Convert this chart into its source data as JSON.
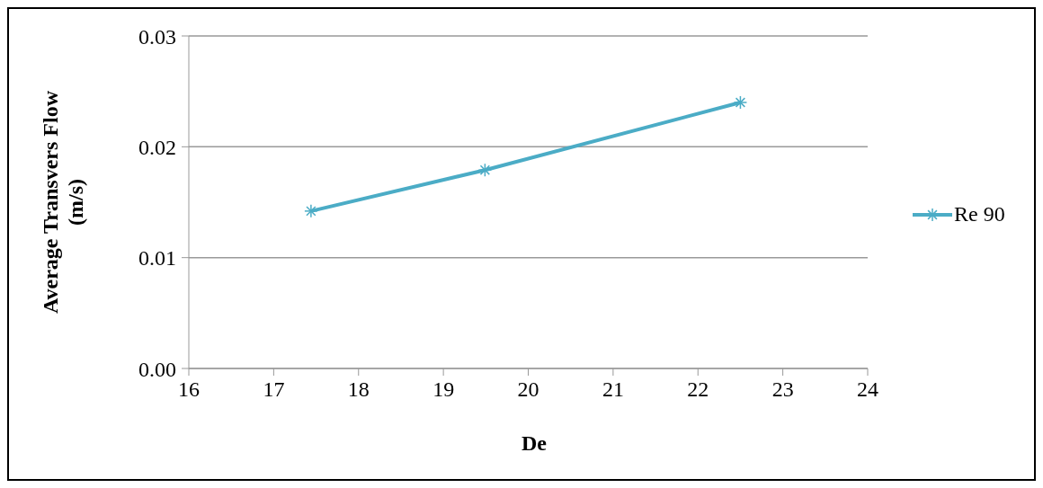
{
  "chart_data": {
    "type": "line",
    "xlabel": "De",
    "ylabel": "Average Transvers Flow (m/s)",
    "series": [
      {
        "name": "Re 90",
        "color": "#4bacc6",
        "x": [
          17.44,
          19.49,
          22.5
        ],
        "values": [
          0.0142,
          0.0179,
          0.024
        ]
      }
    ],
    "xlim": [
      16,
      24
    ],
    "xticks": [
      16,
      17,
      18,
      19,
      20,
      21,
      22,
      23,
      24
    ],
    "ylim": [
      0,
      0.03
    ],
    "yticks": [
      {
        "value": 0,
        "label": "0.00"
      },
      {
        "value": 0.01,
        "label": "0.01"
      },
      {
        "value": 0.02,
        "label": "0.02"
      },
      {
        "value": 0.03,
        "label": "0.03"
      }
    ],
    "grid": "y",
    "legend": "right",
    "marker": "cross",
    "line_style": "solid"
  }
}
